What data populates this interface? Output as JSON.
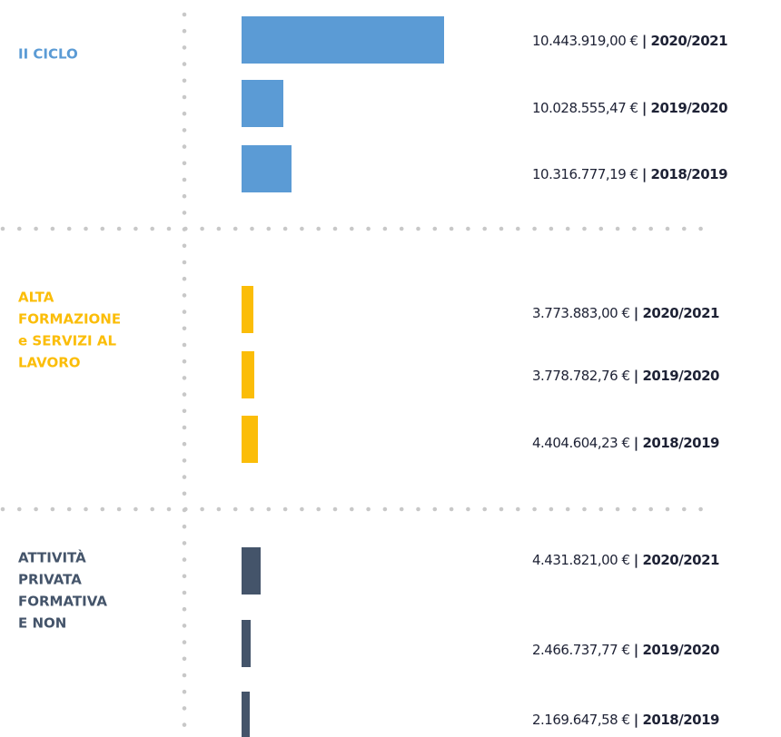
{
  "groups": [
    {
      "label": [
        "II CICLO"
      ],
      "color": "#5b9bd5",
      "rows": [
        {
          "amount": "10.443.919,00 €",
          "year": "| 2020/2021"
        },
        {
          "amount": "10.028.555,47 €",
          "year": "| 2019/2020"
        },
        {
          "amount": "10.316.777,19 €",
          "year": "| 2018/2019"
        }
      ]
    },
    {
      "label": [
        "ALTA",
        "FORMAZIONE",
        "e SERVIZI AL",
        "LAVORO"
      ],
      "color": "#fbbd08",
      "rows": [
        {
          "amount": "3.773.883,00 €",
          "year": "| 2020/2021"
        },
        {
          "amount": "3.778.782,76 €",
          "year": "| 2019/2020"
        },
        {
          "amount": "4.404.604,23 €",
          "year": "| 2018/2019"
        }
      ]
    },
    {
      "label": [
        "ATTIVITÀ",
        "PRIVATA",
        "FORMATIVA",
        "E NON"
      ],
      "color": "#44546a",
      "rows": [
        {
          "amount": "4.431.821,00 €",
          "year": "| 2020/2021"
        },
        {
          "amount": "2.466.737,77 €",
          "year": "| 2019/2020"
        },
        {
          "amount": "2.169.647,58 €",
          "year": "| 2018/2019"
        }
      ]
    }
  ]
}
